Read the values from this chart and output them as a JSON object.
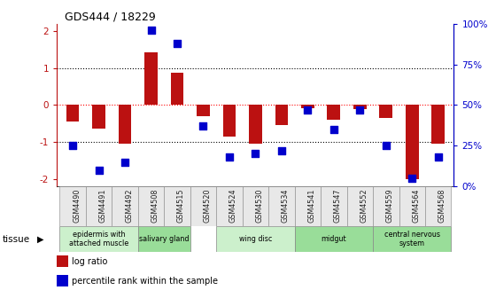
{
  "title": "GDS444 / 18229",
  "samples": [
    "GSM4490",
    "GSM4491",
    "GSM4492",
    "GSM4508",
    "GSM4515",
    "GSM4520",
    "GSM4524",
    "GSM4530",
    "GSM4534",
    "GSM4541",
    "GSM4547",
    "GSM4552",
    "GSM4559",
    "GSM4564",
    "GSM4568"
  ],
  "log_ratio": [
    -0.45,
    -0.65,
    -1.05,
    1.42,
    0.88,
    -0.3,
    -0.85,
    -1.05,
    -0.55,
    -0.08,
    -0.4,
    -0.1,
    -0.35,
    -2.0,
    -1.05
  ],
  "percentile_rank": [
    25,
    10,
    15,
    96,
    88,
    37,
    18,
    20,
    22,
    47,
    35,
    47,
    25,
    5,
    18
  ],
  "bar_color": "#bb1111",
  "dot_color": "#0000cc",
  "ylim_left": [
    -2.2,
    2.2
  ],
  "yticks_left": [
    -2,
    -1,
    0,
    1,
    2
  ],
  "ylim_right": [
    -2.2,
    2.2
  ],
  "pct_min": 0,
  "pct_max": 100,
  "yticks_right_pct": [
    0,
    25,
    50,
    75,
    100
  ],
  "yticklabels_right": [
    "0%",
    "25%",
    "50%",
    "75%",
    "100%"
  ],
  "tissue_groups": [
    {
      "label": "epidermis with\nattached muscle",
      "start": 0,
      "end": 2,
      "color": "#ccf0cc"
    },
    {
      "label": "salivary gland",
      "start": 3,
      "end": 4,
      "color": "#99dd99"
    },
    {
      "label": "wing disc",
      "start": 6,
      "end": 8,
      "color": "#ccf0cc"
    },
    {
      "label": "midgut",
      "start": 9,
      "end": 11,
      "color": "#99dd99"
    },
    {
      "label": "central nervous\nsystem",
      "start": 12,
      "end": 14,
      "color": "#99dd99"
    }
  ],
  "tissue_label": "tissue",
  "legend_log_ratio": "log ratio",
  "legend_percentile": "percentile rank within the sample",
  "bg_color": "#ffffff",
  "bar_width": 0.5,
  "dot_size": 30
}
